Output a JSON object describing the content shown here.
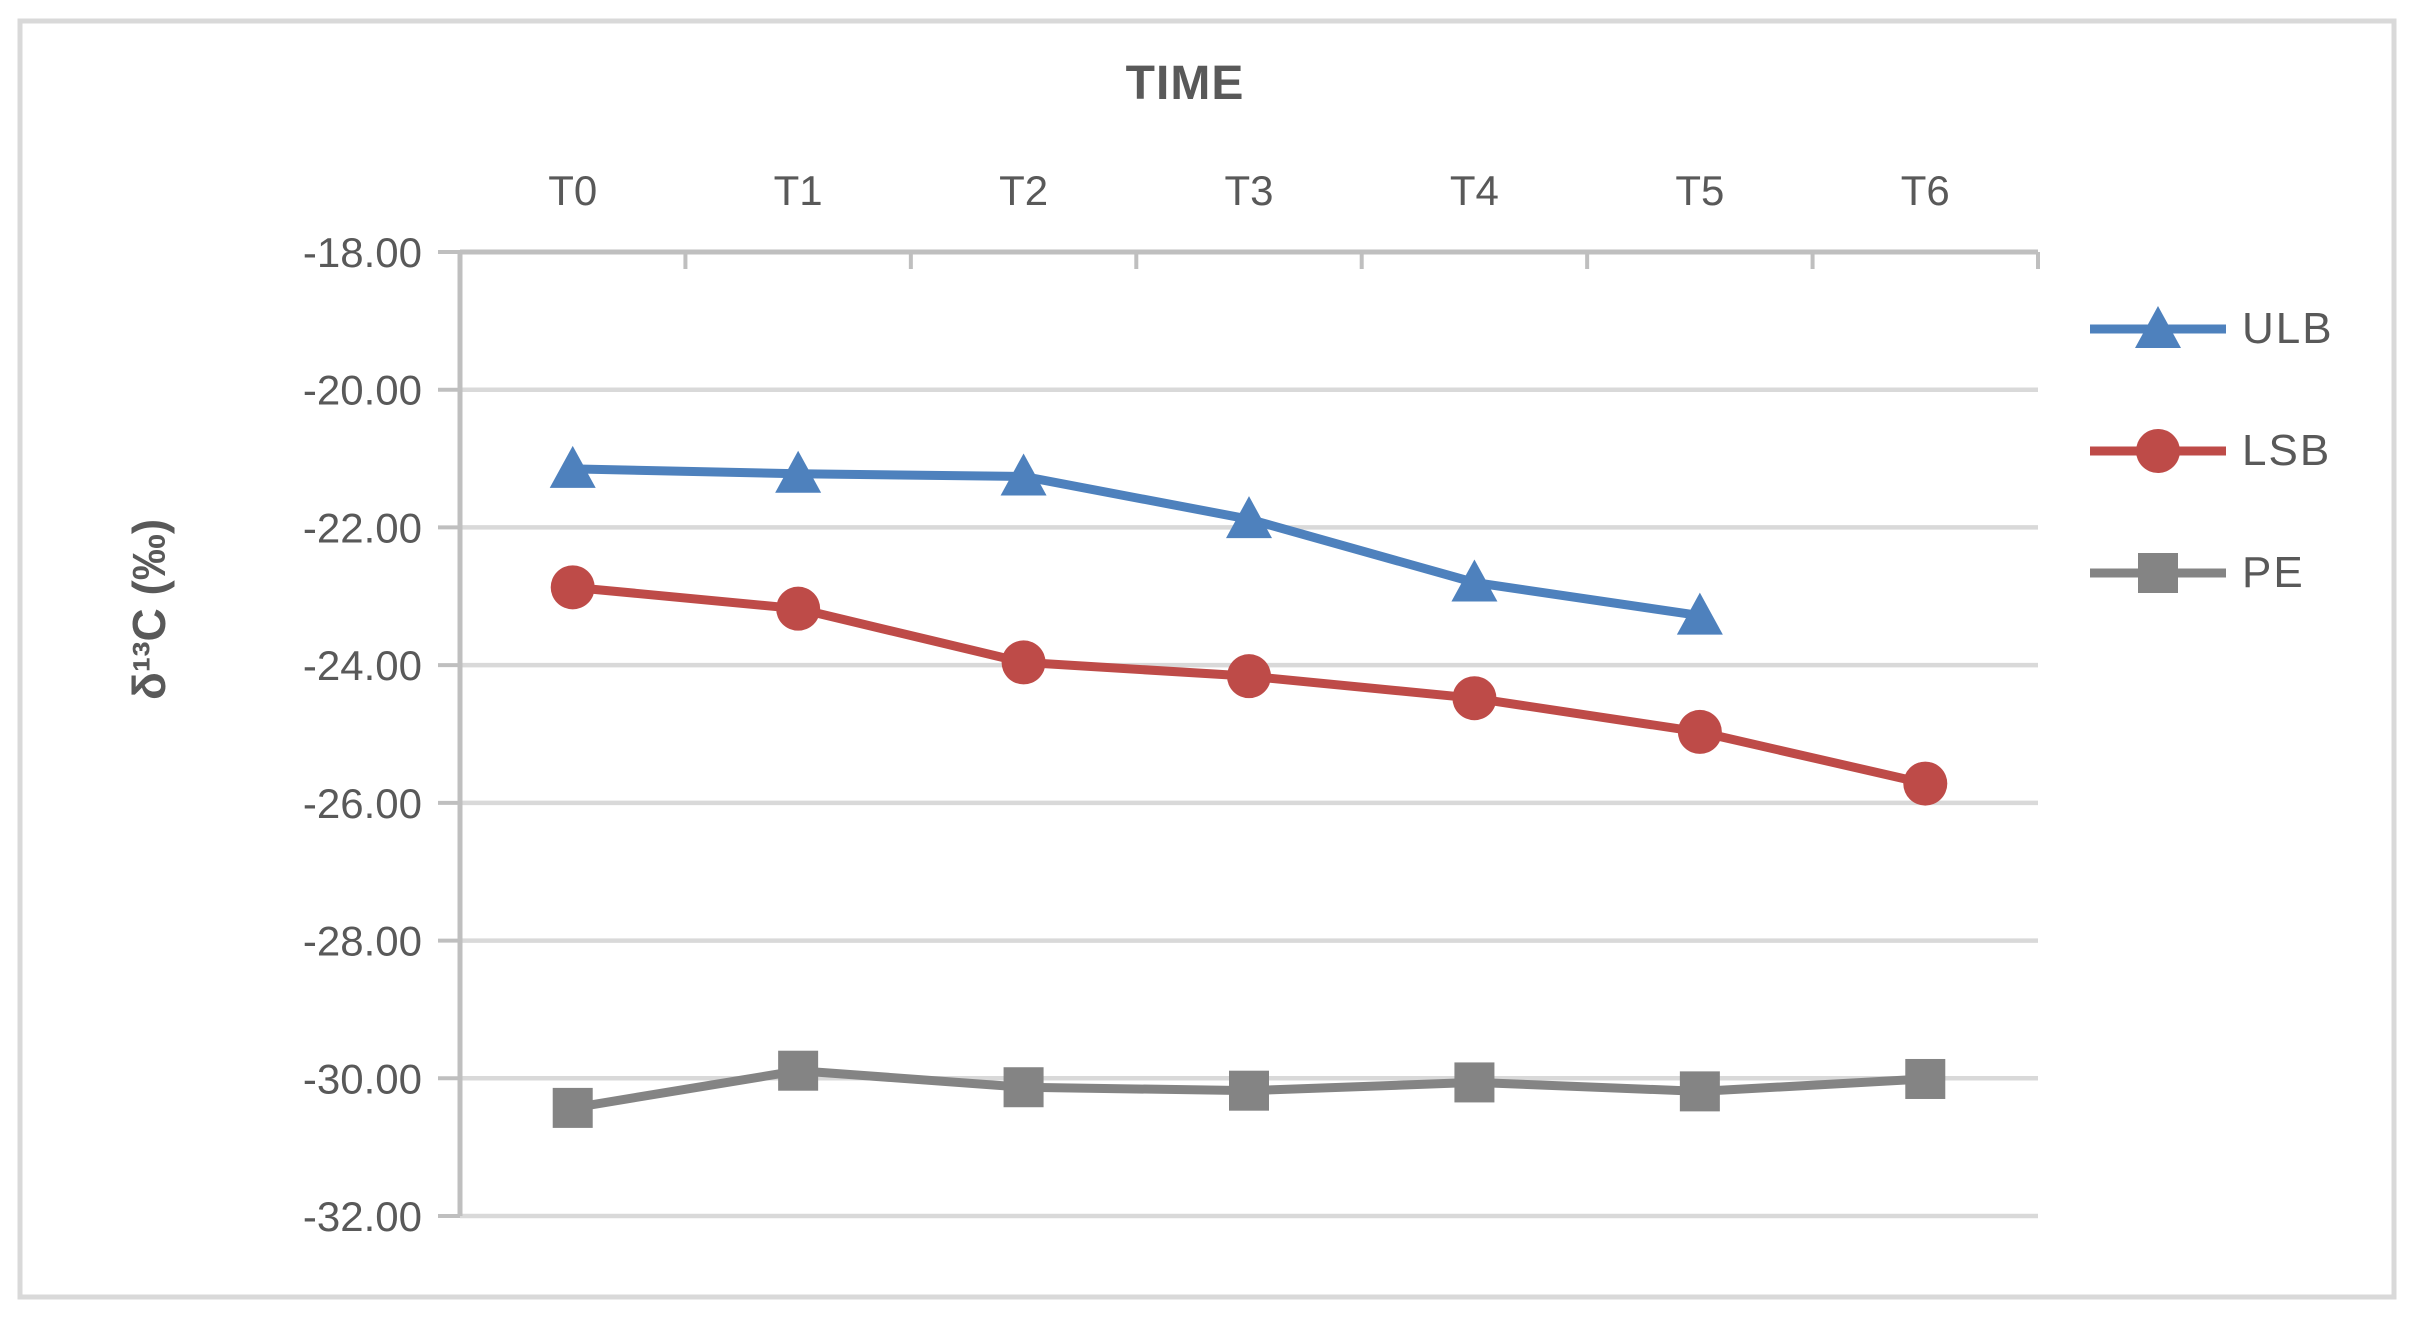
{
  "chart_data": {
    "type": "line",
    "title": "TIME",
    "ylabel": "δ¹³C (‰)",
    "categories": [
      "T0",
      "T1",
      "T2",
      "T3",
      "T4",
      "T5",
      "T6"
    ],
    "y_ticks": [
      "-18.00",
      "-20.00",
      "-22.00",
      "-24.00",
      "-26.00",
      "-28.00",
      "-30.00",
      "-32.00"
    ],
    "ylim": [
      -32,
      -18
    ],
    "grid": true,
    "legend_position": "right",
    "series": [
      {
        "name": "ULB",
        "marker": "triangle",
        "color": "#4E81BD",
        "values": [
          -21.15,
          -21.22,
          -21.26,
          -21.88,
          -22.8,
          -23.28,
          null
        ]
      },
      {
        "name": "LSB",
        "marker": "circle",
        "color": "#BE4B48",
        "values": [
          -22.87,
          -23.18,
          -23.96,
          -24.16,
          -24.48,
          -24.97,
          -25.72
        ]
      },
      {
        "name": "PE",
        "marker": "square",
        "color": "#848484",
        "values": [
          -30.43,
          -29.89,
          -30.13,
          -30.18,
          -30.06,
          -30.19,
          -30.01
        ]
      }
    ]
  },
  "styling": {
    "text_color": "#595959",
    "axis_color": "#BFBFBF",
    "grid_color": "#D9D9D9",
    "border_color": "#D9D9D9",
    "background": "#FFFFFF"
  }
}
